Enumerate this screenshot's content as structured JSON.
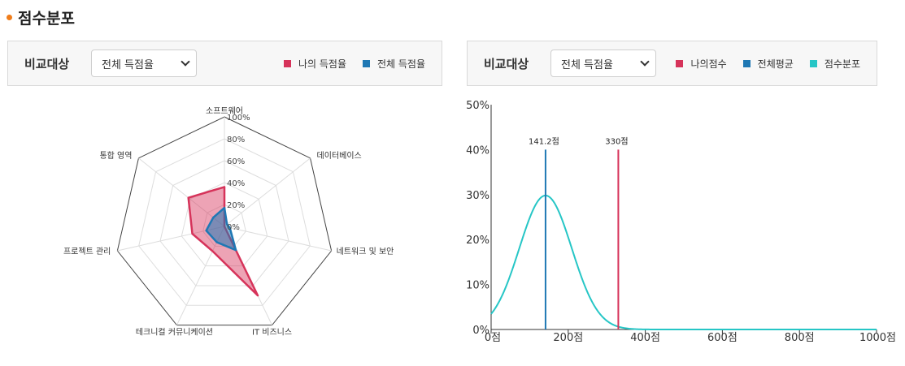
{
  "section": {
    "title": "점수분포"
  },
  "radar_panel": {
    "label": "비교대상",
    "select_value": "전체 득점율",
    "legend": [
      {
        "name": "나의 득점율",
        "color": "#d6335a"
      },
      {
        "name": "전체 득점율",
        "color": "#1f78b4"
      }
    ]
  },
  "dist_panel": {
    "label": "비교대상",
    "select_value": "전체 득점율",
    "legend": [
      {
        "name": "나의점수",
        "color": "#d6335a"
      },
      {
        "name": "전체평균",
        "color": "#1f78b4"
      },
      {
        "name": "점수분포",
        "color": "#26c6c6"
      }
    ]
  },
  "chart_data": [
    {
      "type": "radar",
      "categories": [
        "소프트웨어",
        "데이터베이스",
        "네트워크 및 보안",
        "IT 비즈니스",
        "테크니컬 커뮤니케이션",
        "프로젝트 관리",
        "통합 영역"
      ],
      "r_ticks": [
        "0%",
        "20%",
        "40%",
        "60%",
        "80%",
        "100%"
      ],
      "r_range": [
        0,
        100
      ],
      "series": [
        {
          "name": "나의 득점율",
          "color": "#d6335a",
          "values": [
            36,
            0,
            0,
            70,
            25,
            30,
            42
          ]
        },
        {
          "name": "전체 득점율",
          "color": "#1f78b4",
          "values": [
            17,
            3,
            5,
            24,
            16,
            17,
            13
          ]
        }
      ]
    },
    {
      "type": "line",
      "x_ticks": [
        "0점",
        "200점",
        "400점",
        "600점",
        "800점",
        "1000점"
      ],
      "x_range": [
        0,
        1000
      ],
      "y_ticks": [
        "0%",
        "10%",
        "20%",
        "30%",
        "40%",
        "50%"
      ],
      "y_range": [
        0,
        50
      ],
      "distribution": {
        "mean": 141.2,
        "sd": 68,
        "peak": 29.8
      },
      "markers": [
        {
          "name": "전체평균",
          "x": 141.2,
          "label": "141.2점",
          "color": "#1f78b4"
        },
        {
          "name": "나의점수",
          "x": 330,
          "label": "330점",
          "color": "#d6335a"
        }
      ]
    }
  ]
}
